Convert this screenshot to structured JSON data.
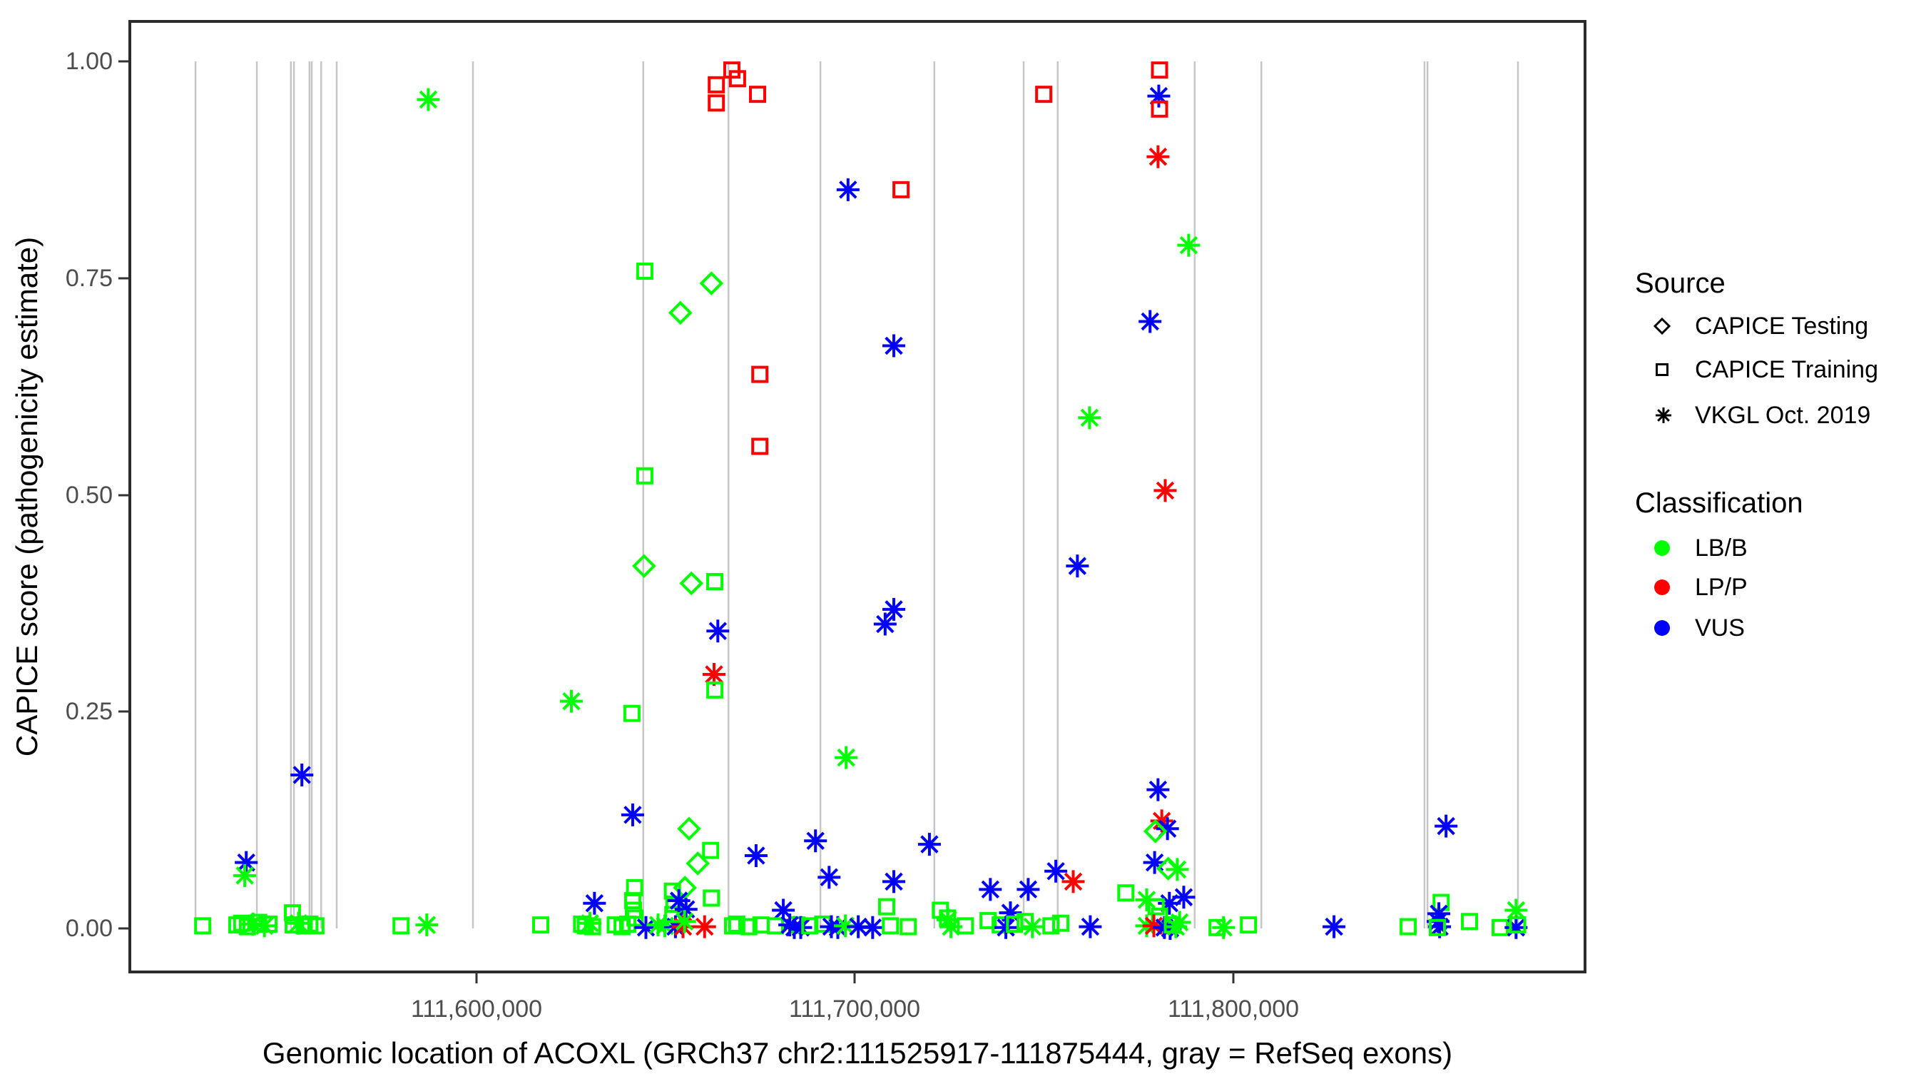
{
  "figure": {
    "background": "#FFFFFF"
  },
  "chart_data": {
    "type": "scatter",
    "title": "",
    "xlabel": "Genomic location of ACOXL (GRCh37 chr2:111525917-111875444, gray = RefSeq exons)",
    "ylabel": "CAPICE score (pathogenicity estimate)",
    "xlim": [
      111508441,
      111892920
    ],
    "ylim": [
      -0.05,
      1.05
    ],
    "grid": "off",
    "x_ticks": [
      {
        "value": 111600000,
        "label": "111,600,000"
      },
      {
        "value": 111700000,
        "label": "111,700,000"
      },
      {
        "value": 111800000,
        "label": "111,800,000"
      }
    ],
    "y_ticks": [
      {
        "value": 0.0,
        "label": "0.00"
      },
      {
        "value": 0.25,
        "label": "0.25"
      },
      {
        "value": 0.5,
        "label": "0.50"
      },
      {
        "value": 0.75,
        "label": "0.75"
      },
      {
        "value": 1.0,
        "label": "1.00"
      }
    ],
    "exon_note": "gray = RefSeq exons",
    "exon_positions": [
      111525800,
      111542000,
      111551000,
      111551800,
      111555900,
      111556500,
      111559000,
      111563100,
      111599100,
      111644100,
      111666600,
      111690900,
      111721000,
      111744600,
      111753600,
      111789800,
      111807400,
      111850500,
      111851300,
      111875200
    ],
    "legend": {
      "source": {
        "title": "Source",
        "items": [
          {
            "label": "CAPICE Testing",
            "shape": "diamond"
          },
          {
            "label": "CAPICE Training",
            "shape": "square"
          },
          {
            "label": "VKGL Oct. 2019",
            "shape": "asterisk"
          }
        ]
      },
      "classification": {
        "title": "Classification",
        "items": [
          {
            "label": "LB/B",
            "color": "#00FF00"
          },
          {
            "label": "LP/P",
            "color": "#FF0000"
          },
          {
            "label": "VUS",
            "color": "#0000FF"
          }
        ]
      }
    },
    "point_encoding": {
      "fields": [
        "genomic_position",
        "capice_score",
        "source",
        "classification"
      ],
      "source_codes": {
        "D": "CAPICE Testing",
        "S": "CAPICE Training",
        "A": "VKGL Oct. 2019"
      },
      "class_codes": {
        "G": "LB/B",
        "R": "LP/P",
        "B": "VUS"
      }
    },
    "points": [
      [
        111587300,
        0.956,
        "A",
        "G"
      ],
      [
        111663400,
        0.973,
        "S",
        "R"
      ],
      [
        111663400,
        0.952,
        "S",
        "R"
      ],
      [
        111667500,
        0.99,
        "S",
        "R"
      ],
      [
        111669000,
        0.98,
        "S",
        "R"
      ],
      [
        111674300,
        0.962,
        "S",
        "R"
      ],
      [
        111749900,
        0.962,
        "S",
        "R"
      ],
      [
        111698200,
        0.852,
        "A",
        "B"
      ],
      [
        111712200,
        0.852,
        "S",
        "R"
      ],
      [
        111710300,
        0.672,
        "A",
        "B"
      ],
      [
        111674900,
        0.639,
        "S",
        "R"
      ],
      [
        111674900,
        0.556,
        "S",
        "R"
      ],
      [
        111644500,
        0.758,
        "S",
        "G"
      ],
      [
        111662100,
        0.744,
        "D",
        "G"
      ],
      [
        111653900,
        0.71,
        "D",
        "G"
      ],
      [
        111644500,
        0.522,
        "S",
        "G"
      ],
      [
        111644300,
        0.418,
        "D",
        "G"
      ],
      [
        111656800,
        0.398,
        "D",
        "G"
      ],
      [
        111663000,
        0.4,
        "S",
        "G"
      ],
      [
        111663800,
        0.343,
        "A",
        "B"
      ],
      [
        111662800,
        0.293,
        "A",
        "R"
      ],
      [
        111663000,
        0.275,
        "S",
        "G"
      ],
      [
        111625100,
        0.262,
        "A",
        "G"
      ],
      [
        111710300,
        0.368,
        "A",
        "B"
      ],
      [
        111708000,
        0.351,
        "A",
        "B"
      ],
      [
        111641100,
        0.248,
        "S",
        "G"
      ],
      [
        111697700,
        0.197,
        "A",
        "G"
      ],
      [
        111553900,
        0.177,
        "A",
        "B"
      ],
      [
        111539200,
        0.076,
        "A",
        "B"
      ],
      [
        111538800,
        0.061,
        "A",
        "G"
      ],
      [
        111641300,
        0.131,
        "A",
        "B"
      ],
      [
        111780500,
        0.99,
        "S",
        "R"
      ],
      [
        111780300,
        0.96,
        "A",
        "B"
      ],
      [
        111780500,
        0.945,
        "S",
        "R"
      ],
      [
        111780100,
        0.89,
        "A",
        "R"
      ],
      [
        111788200,
        0.788,
        "A",
        "G"
      ],
      [
        111778000,
        0.7,
        "A",
        "B"
      ],
      [
        111762000,
        0.589,
        "A",
        "G"
      ],
      [
        111758800,
        0.418,
        "A",
        "B"
      ],
      [
        111782000,
        0.505,
        "A",
        "R"
      ],
      [
        111689600,
        0.101,
        "A",
        "B"
      ],
      [
        111719700,
        0.097,
        "A",
        "B"
      ],
      [
        111693200,
        0.059,
        "A",
        "B"
      ],
      [
        111710300,
        0.054,
        "A",
        "B"
      ],
      [
        111735800,
        0.045,
        "A",
        "B"
      ],
      [
        111745800,
        0.045,
        "A",
        "B"
      ],
      [
        111753100,
        0.066,
        "A",
        "B"
      ],
      [
        111757700,
        0.054,
        "A",
        "R"
      ],
      [
        111741100,
        0.018,
        "A",
        "B"
      ],
      [
        111656200,
        0.115,
        "D",
        "G"
      ],
      [
        111661900,
        0.09,
        "S",
        "G"
      ],
      [
        111658500,
        0.075,
        "D",
        "G"
      ],
      [
        111673900,
        0.084,
        "A",
        "B"
      ],
      [
        111631200,
        0.029,
        "A",
        "B"
      ],
      [
        111655100,
        0.047,
        "D",
        "G"
      ],
      [
        111780100,
        0.16,
        "A",
        "B"
      ],
      [
        111781100,
        0.124,
        "A",
        "R"
      ],
      [
        111782600,
        0.115,
        "A",
        "B"
      ],
      [
        111779400,
        0.112,
        "D",
        "G"
      ],
      [
        111779200,
        0.076,
        "A",
        "B"
      ],
      [
        111782800,
        0.069,
        "D",
        "G"
      ],
      [
        111785200,
        0.068,
        "A",
        "G"
      ],
      [
        111856200,
        0.118,
        "A",
        "B"
      ],
      [
        111527700,
        0.003,
        "S",
        "G"
      ],
      [
        111536700,
        0.004,
        "S",
        "G"
      ],
      [
        111538000,
        0.006,
        "S",
        "G"
      ],
      [
        111539500,
        0.002,
        "S",
        "G"
      ],
      [
        111541000,
        0.005,
        "A",
        "G"
      ],
      [
        111542500,
        0.007,
        "S",
        "G"
      ],
      [
        111544000,
        0.003,
        "A",
        "G"
      ],
      [
        111545200,
        0.005,
        "S",
        "G"
      ],
      [
        111551400,
        0.018,
        "S",
        "G"
      ],
      [
        111551600,
        0.004,
        "S",
        "G"
      ],
      [
        111553000,
        0.006,
        "A",
        "G"
      ],
      [
        111554500,
        0.003,
        "S",
        "G"
      ],
      [
        111556000,
        0.005,
        "S",
        "G"
      ],
      [
        111557600,
        0.003,
        "S",
        "G"
      ],
      [
        111580100,
        0.003,
        "S",
        "G"
      ],
      [
        111586900,
        0.004,
        "A",
        "G"
      ],
      [
        111617000,
        0.004,
        "S",
        "G"
      ],
      [
        111627800,
        0.005,
        "S",
        "G"
      ],
      [
        111628800,
        0.003,
        "S",
        "G"
      ],
      [
        111630000,
        0.006,
        "A",
        "G"
      ],
      [
        111630700,
        0.002,
        "S",
        "G"
      ],
      [
        111636700,
        0.004,
        "S",
        "G"
      ],
      [
        111638500,
        0.002,
        "S",
        "G"
      ],
      [
        111640000,
        0.005,
        "S",
        "G"
      ],
      [
        111641800,
        0.047,
        "S",
        "G"
      ],
      [
        111641300,
        0.032,
        "S",
        "G"
      ],
      [
        111641500,
        0.021,
        "S",
        "G"
      ],
      [
        111641900,
        0.012,
        "S",
        "G"
      ],
      [
        111644800,
        0.001,
        "A",
        "B"
      ],
      [
        111649800,
        0.003,
        "A",
        "G"
      ],
      [
        111652600,
        0.002,
        "A",
        "B"
      ],
      [
        111651800,
        0.043,
        "S",
        "G"
      ],
      [
        111652200,
        0.028,
        "S",
        "G"
      ],
      [
        111651900,
        0.016,
        "S",
        "G"
      ],
      [
        111653500,
        0.032,
        "A",
        "B"
      ],
      [
        111655400,
        0.022,
        "A",
        "B"
      ],
      [
        111648000,
        0.004,
        "A",
        "G"
      ],
      [
        111654600,
        0.002,
        "A",
        "R"
      ],
      [
        111660300,
        0.002,
        "A",
        "R"
      ],
      [
        111662100,
        0.035,
        "S",
        "G"
      ],
      [
        111655000,
        0.008,
        "A",
        "G"
      ],
      [
        111681100,
        0.021,
        "A",
        "B"
      ],
      [
        111684000,
        0.001,
        "A",
        "B"
      ],
      [
        111667700,
        0.003,
        "S",
        "G"
      ],
      [
        111668800,
        0.005,
        "S",
        "G"
      ],
      [
        111672000,
        0.002,
        "S",
        "G"
      ],
      [
        111675200,
        0.004,
        "S",
        "G"
      ],
      [
        111679000,
        0.003,
        "S",
        "G"
      ],
      [
        111684700,
        0.004,
        "S",
        "G"
      ],
      [
        111682800,
        0.004,
        "A",
        "B"
      ],
      [
        111685700,
        0.001,
        "A",
        "B"
      ],
      [
        111688100,
        0.003,
        "S",
        "G"
      ],
      [
        111691500,
        0.005,
        "S",
        "G"
      ],
      [
        111693800,
        0.002,
        "A",
        "B"
      ],
      [
        111695500,
        0.001,
        "A",
        "B"
      ],
      [
        111697500,
        0.003,
        "A",
        "G"
      ],
      [
        111700900,
        0.002,
        "A",
        "B"
      ],
      [
        111704700,
        0.001,
        "A",
        "B"
      ],
      [
        111708400,
        0.025,
        "S",
        "G"
      ],
      [
        111709400,
        0.003,
        "S",
        "G"
      ],
      [
        111714100,
        0.002,
        "S",
        "G"
      ],
      [
        111722600,
        0.021,
        "S",
        "G"
      ],
      [
        111724500,
        0.012,
        "S",
        "G"
      ],
      [
        111724600,
        0.01,
        "A",
        "G"
      ],
      [
        111725400,
        0.002,
        "A",
        "G"
      ],
      [
        111729200,
        0.003,
        "S",
        "G"
      ],
      [
        111735200,
        0.009,
        "S",
        "G"
      ],
      [
        111738400,
        0.004,
        "S",
        "G"
      ],
      [
        111739900,
        0.001,
        "A",
        "B"
      ],
      [
        111742200,
        0.005,
        "S",
        "G"
      ],
      [
        111745000,
        0.008,
        "S",
        "G"
      ],
      [
        111746900,
        0.002,
        "A",
        "G"
      ],
      [
        111751800,
        0.003,
        "S",
        "G"
      ],
      [
        111754400,
        0.006,
        "S",
        "G"
      ],
      [
        111762200,
        0.002,
        "A",
        "B"
      ],
      [
        111771600,
        0.041,
        "S",
        "G"
      ],
      [
        111777100,
        0.033,
        "A",
        "G"
      ],
      [
        111777100,
        0.003,
        "A",
        "G"
      ],
      [
        111786900,
        0.036,
        "A",
        "B"
      ],
      [
        111783100,
        0.029,
        "A",
        "B"
      ],
      [
        111779600,
        0.025,
        "S",
        "G"
      ],
      [
        111780500,
        0.014,
        "S",
        "G"
      ],
      [
        111779000,
        0.003,
        "A",
        "R"
      ],
      [
        111781800,
        0.001,
        "A",
        "B"
      ],
      [
        111783300,
        0.0,
        "A",
        "B"
      ],
      [
        111784800,
        0.002,
        "A",
        "G"
      ],
      [
        111785800,
        0.007,
        "A",
        "G"
      ],
      [
        111783900,
        0.004,
        "S",
        "G"
      ],
      [
        111795700,
        0.001,
        "S",
        "G"
      ],
      [
        111797400,
        0.001,
        "A",
        "G"
      ],
      [
        111804000,
        0.004,
        "S",
        "G"
      ],
      [
        111826600,
        0.002,
        "A",
        "B"
      ],
      [
        111846200,
        0.002,
        "S",
        "G"
      ],
      [
        111854900,
        0.03,
        "S",
        "G"
      ],
      [
        111854300,
        0.017,
        "A",
        "B"
      ],
      [
        111854100,
        0.008,
        "A",
        "B"
      ],
      [
        111854500,
        0.002,
        "A",
        "B"
      ],
      [
        111853900,
        0.001,
        "S",
        "G"
      ],
      [
        111862400,
        0.008,
        "S",
        "G"
      ],
      [
        111870500,
        0.001,
        "S",
        "G"
      ],
      [
        111874700,
        0.021,
        "A",
        "G"
      ],
      [
        111874700,
        0.001,
        "A",
        "B"
      ],
      [
        111875100,
        0.004,
        "S",
        "G"
      ]
    ]
  },
  "panel": {
    "border_color": "#2B2B2B",
    "exon_line_color": "#C6C6C6",
    "tick_color": "#333333",
    "tick_label_color": "#4D4D4D"
  }
}
